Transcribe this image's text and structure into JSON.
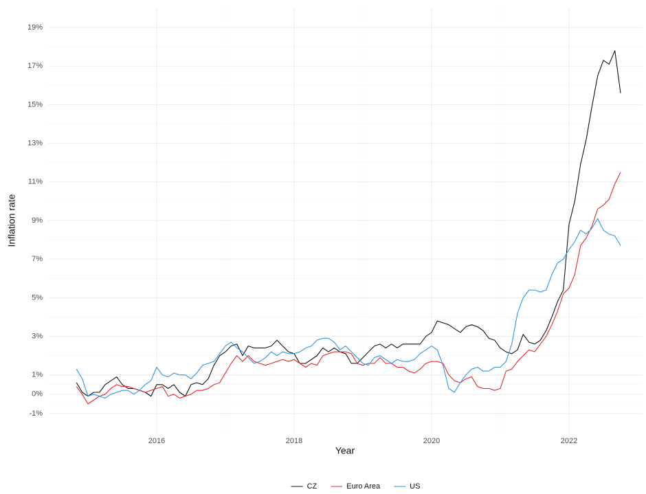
{
  "chart_data": {
    "type": "line",
    "xlabel": "Year",
    "ylabel": "Inflation rate",
    "x": [
      2014.833,
      2014.917,
      2015.0,
      2015.083,
      2015.167,
      2015.25,
      2015.333,
      2015.417,
      2015.5,
      2015.583,
      2015.667,
      2015.75,
      2015.833,
      2015.917,
      2016.0,
      2016.083,
      2016.167,
      2016.25,
      2016.333,
      2016.417,
      2016.5,
      2016.583,
      2016.667,
      2016.75,
      2016.833,
      2016.917,
      2017.0,
      2017.083,
      2017.167,
      2017.25,
      2017.333,
      2017.417,
      2017.5,
      2017.583,
      2017.667,
      2017.75,
      2017.833,
      2017.917,
      2018.0,
      2018.083,
      2018.167,
      2018.25,
      2018.333,
      2018.417,
      2018.5,
      2018.583,
      2018.667,
      2018.75,
      2018.833,
      2018.917,
      2019.0,
      2019.083,
      2019.167,
      2019.25,
      2019.333,
      2019.417,
      2019.5,
      2019.583,
      2019.667,
      2019.75,
      2019.833,
      2019.917,
      2020.0,
      2020.083,
      2020.167,
      2020.25,
      2020.333,
      2020.417,
      2020.5,
      2020.583,
      2020.667,
      2020.75,
      2020.833,
      2020.917,
      2021.0,
      2021.083,
      2021.167,
      2021.25,
      2021.333,
      2021.417,
      2021.5,
      2021.583,
      2021.667,
      2021.75,
      2021.833,
      2021.917,
      2022.0,
      2022.083,
      2022.167,
      2022.25,
      2022.333,
      2022.417,
      2022.5,
      2022.583,
      2022.667,
      2022.75
    ],
    "series": [
      {
        "name": "CZ",
        "color": "#111111",
        "values": [
          0.6,
          0.1,
          -0.1,
          0.1,
          0.1,
          0.5,
          0.7,
          0.9,
          0.5,
          0.3,
          0.3,
          0.2,
          0.1,
          -0.1,
          0.5,
          0.5,
          0.3,
          0.5,
          0.1,
          -0.1,
          0.5,
          0.6,
          0.5,
          0.8,
          1.5,
          2.0,
          2.2,
          2.5,
          2.6,
          2.0,
          2.5,
          2.4,
          2.4,
          2.4,
          2.5,
          2.8,
          2.5,
          2.2,
          2.1,
          1.6,
          1.6,
          1.8,
          2.0,
          2.4,
          2.2,
          2.4,
          2.2,
          2.1,
          1.6,
          1.6,
          1.9,
          2.2,
          2.5,
          2.6,
          2.4,
          2.6,
          2.4,
          2.6,
          2.6,
          2.6,
          2.6,
          3.0,
          3.2,
          3.8,
          3.7,
          3.6,
          3.4,
          3.2,
          3.5,
          3.6,
          3.5,
          3.3,
          2.9,
          2.8,
          2.4,
          2.2,
          2.1,
          2.3,
          3.1,
          2.7,
          2.6,
          2.8,
          3.3,
          4.0,
          4.8,
          5.4,
          8.8,
          10.0,
          11.9,
          13.2,
          14.9,
          16.5,
          17.3,
          17.1,
          17.8,
          15.6
        ]
      },
      {
        "name": "Euro Area",
        "color": "#e8262d",
        "values": [
          0.4,
          0.0,
          -0.5,
          -0.3,
          -0.1,
          0.0,
          0.3,
          0.5,
          0.4,
          0.4,
          0.3,
          0.2,
          0.1,
          0.2,
          0.3,
          0.4,
          -0.1,
          0.0,
          -0.2,
          -0.1,
          0.0,
          0.2,
          0.2,
          0.3,
          0.5,
          0.6,
          1.1,
          1.6,
          2.0,
          1.7,
          2.0,
          1.7,
          1.6,
          1.5,
          1.6,
          1.7,
          1.8,
          1.7,
          1.8,
          1.6,
          1.4,
          1.6,
          1.5,
          2.0,
          2.1,
          2.2,
          2.2,
          2.2,
          2.1,
          1.6,
          1.5,
          1.6,
          1.6,
          1.9,
          1.6,
          1.6,
          1.4,
          1.4,
          1.2,
          1.1,
          1.3,
          1.6,
          1.7,
          1.7,
          1.6,
          1.0,
          0.7,
          0.6,
          0.8,
          0.9,
          0.4,
          0.3,
          0.3,
          0.2,
          0.3,
          1.2,
          1.3,
          1.7,
          2.0,
          2.3,
          2.2,
          2.6,
          3.0,
          3.6,
          4.3,
          5.2,
          5.5,
          6.2,
          7.7,
          8.1,
          8.7,
          9.6,
          9.8,
          10.1,
          10.9,
          11.5
        ]
      },
      {
        "name": "US",
        "color": "#2b95e6",
        "values": [
          1.3,
          0.8,
          -0.1,
          0.0,
          -0.1,
          -0.2,
          0.0,
          0.1,
          0.2,
          0.2,
          0.0,
          0.2,
          0.5,
          0.7,
          1.4,
          1.0,
          0.9,
          1.1,
          1.0,
          1.0,
          0.8,
          1.1,
          1.5,
          1.6,
          1.7,
          2.1,
          2.5,
          2.7,
          2.4,
          2.2,
          1.9,
          1.6,
          1.7,
          1.9,
          2.2,
          2.0,
          2.2,
          2.1,
          2.1,
          2.2,
          2.4,
          2.5,
          2.8,
          2.9,
          2.9,
          2.7,
          2.3,
          2.5,
          2.2,
          1.9,
          1.6,
          1.5,
          1.9,
          2.0,
          1.8,
          1.6,
          1.8,
          1.7,
          1.7,
          1.8,
          2.1,
          2.3,
          2.5,
          2.3,
          1.5,
          0.3,
          0.1,
          0.6,
          1.0,
          1.3,
          1.4,
          1.2,
          1.2,
          1.4,
          1.4,
          1.7,
          2.6,
          4.2,
          5.0,
          5.4,
          5.4,
          5.3,
          5.4,
          6.2,
          6.8,
          7.0,
          7.5,
          7.9,
          8.5,
          8.3,
          8.6,
          9.1,
          8.5,
          8.3,
          8.2,
          7.7
        ]
      }
    ],
    "xlim": [
      2014.42,
      2023.07
    ],
    "xticks": [
      2016,
      2018,
      2020,
      2022
    ],
    "ylim": [
      -2,
      20
    ],
    "yticks": [
      {
        "value": -1,
        "label": "-1%"
      },
      {
        "value": 0,
        "label": "0%"
      },
      {
        "value": 1,
        "label": "1%"
      },
      {
        "value": 3,
        "label": "3%"
      },
      {
        "value": 5,
        "label": "5%"
      },
      {
        "value": 7,
        "label": "7%"
      },
      {
        "value": 9,
        "label": "9%"
      },
      {
        "value": 11,
        "label": "11%"
      },
      {
        "value": 13,
        "label": "13%"
      },
      {
        "value": 15,
        "label": "15%"
      },
      {
        "value": 17,
        "label": "17%"
      },
      {
        "value": 19,
        "label": "19%"
      }
    ],
    "grid": true,
    "minor_grid": true,
    "legend": "bottom"
  }
}
